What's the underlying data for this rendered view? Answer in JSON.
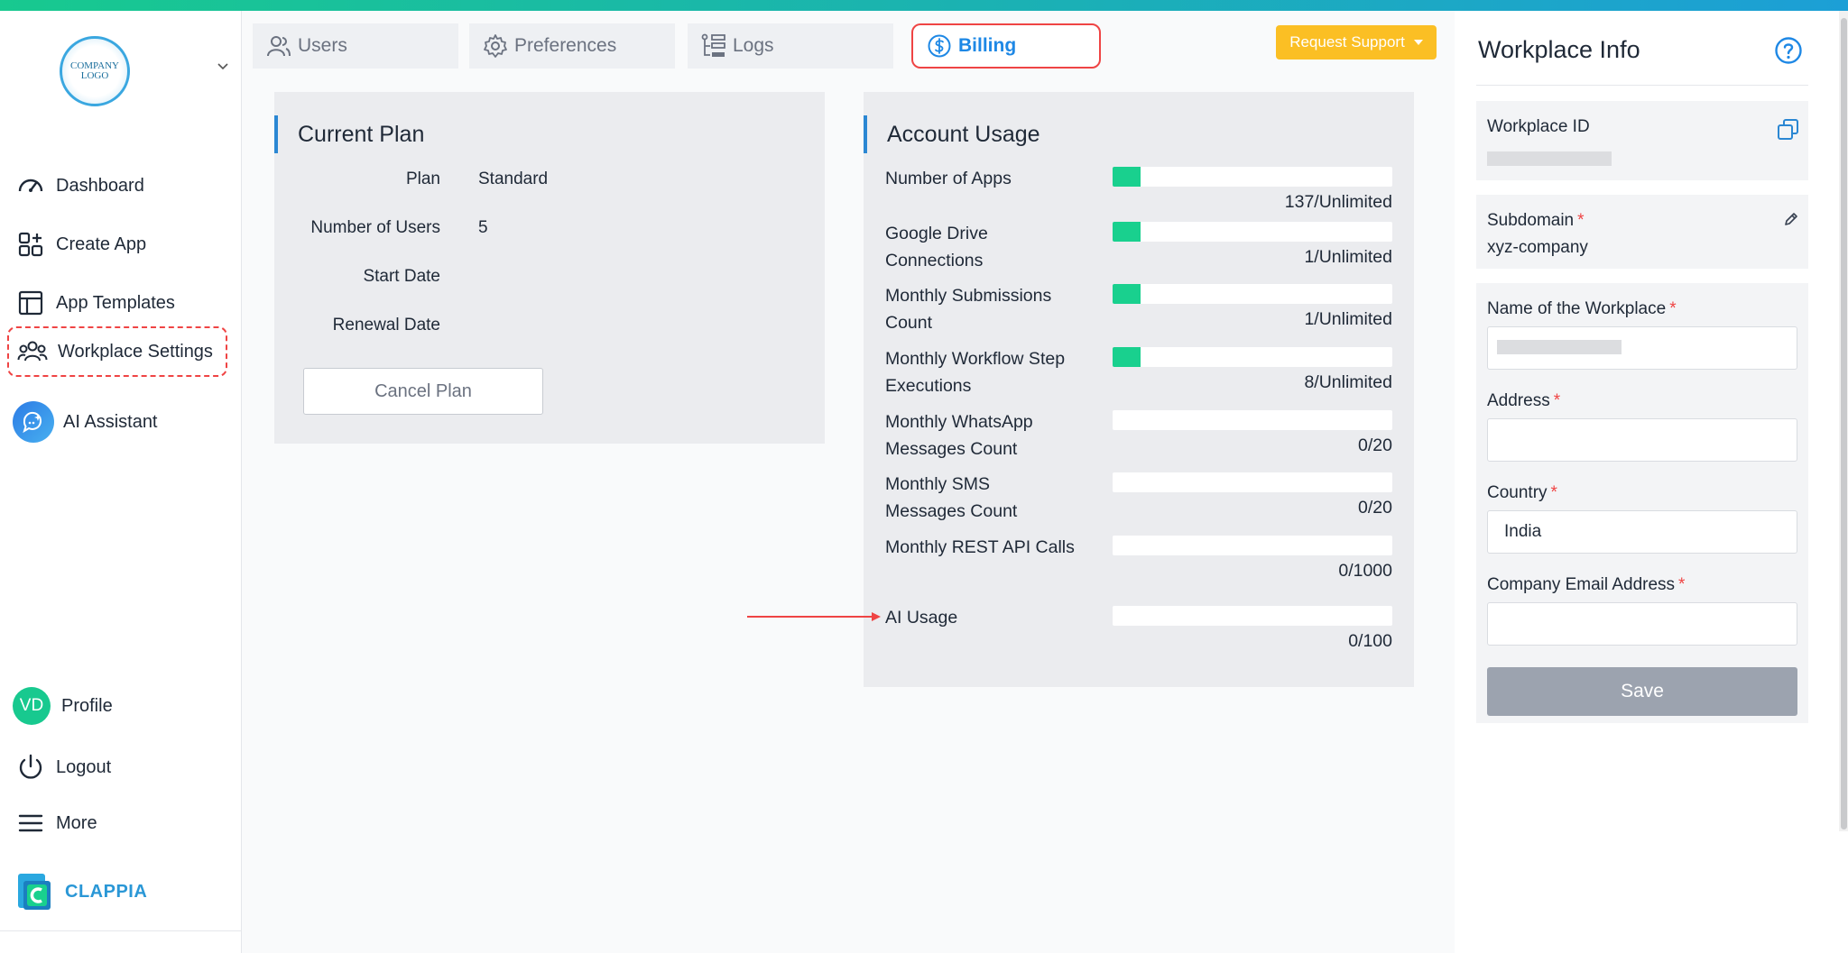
{
  "sidebar": {
    "logo_text": "COMPANY LOGO",
    "items": [
      {
        "label": "Dashboard"
      },
      {
        "label": "Create App"
      },
      {
        "label": "App Templates"
      },
      {
        "label": "Workplace Settings"
      },
      {
        "label": "AI Assistant"
      }
    ],
    "profile": {
      "initials": "VD",
      "label": "Profile"
    },
    "logout": "Logout",
    "more": "More",
    "brand": "CLAPPIA"
  },
  "tabs": [
    {
      "label": "Users",
      "icon": "users-icon"
    },
    {
      "label": "Preferences",
      "icon": "gear-icon"
    },
    {
      "label": "Logs",
      "icon": "logs-icon"
    },
    {
      "label": "Billing",
      "icon": "dollar-icon",
      "active": true
    }
  ],
  "support_button": "Request Support",
  "current_plan": {
    "title": "Current Plan",
    "rows": [
      {
        "key": "Plan",
        "value": "Standard"
      },
      {
        "key": "Number of Users",
        "value": "5"
      },
      {
        "key": "Start Date",
        "value": ""
      },
      {
        "key": "Renewal Date",
        "value": ""
      }
    ],
    "cancel_label": "Cancel Plan"
  },
  "account_usage": {
    "title": "Account Usage",
    "rows": [
      {
        "label": "Number of Apps",
        "value": "137/Unlimited",
        "fill": 0.1
      },
      {
        "label": "Google Drive Connections",
        "value": "1/Unlimited",
        "fill": 0.1
      },
      {
        "label": "Monthly Submissions Count",
        "value": "1/Unlimited",
        "fill": 0.1
      },
      {
        "label": "Monthly Workflow Step Executions",
        "value": "8/Unlimited",
        "fill": 0.1
      },
      {
        "label": "Monthly WhatsApp Messages Count",
        "value": "0/20",
        "fill": 0
      },
      {
        "label": "Monthly SMS Messages Count",
        "value": "0/20",
        "fill": 0
      },
      {
        "label": "Monthly REST API Calls",
        "value": "0/1000",
        "fill": 0
      },
      {
        "label": "AI Usage",
        "value": "0/100",
        "fill": 0
      }
    ]
  },
  "workplace_info": {
    "title": "Workplace Info",
    "workplace_id_label": "Workplace ID",
    "subdomain_label": "Subdomain",
    "subdomain_value": "xyz-company",
    "name_label": "Name of the Workplace",
    "address_label": "Address",
    "country_label": "Country",
    "country_value": "India",
    "email_label": "Company Email Address",
    "required_mark": "*",
    "save_label": "Save"
  },
  "colors": {
    "accent": "#1e88e5",
    "progress": "#19d08e",
    "highlight": "#ef4444",
    "support": "#fbbf24"
  }
}
